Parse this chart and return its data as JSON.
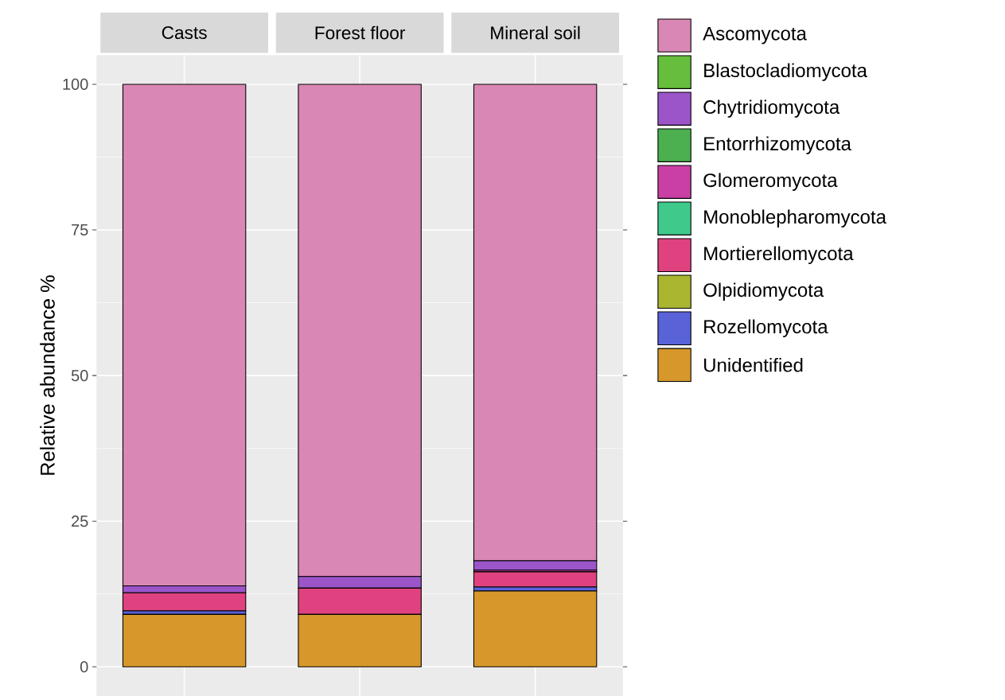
{
  "chart_data": {
    "type": "bar",
    "stacked": true,
    "ylabel": "Relative abundance %",
    "categories": [
      "Casts",
      "Forest floor",
      "Mineral soil"
    ],
    "ylim": [
      -5,
      105
    ],
    "yticks": [
      0,
      25,
      50,
      75,
      100
    ],
    "grid": true,
    "legend": "right",
    "series": [
      {
        "name": "Unidentified",
        "color": "#d6982a",
        "values": [
          9.0,
          9.0,
          13.0
        ]
      },
      {
        "name": "Rozellomycota",
        "color": "#5a62d8",
        "values": [
          0.6,
          null,
          0.7
        ]
      },
      {
        "name": "Olpidiomycota",
        "color": "#aab530",
        "values": [
          0,
          0,
          0
        ]
      },
      {
        "name": "Mortierellomycota",
        "color": "#e04280",
        "values": [
          3.1,
          4.5,
          2.6
        ]
      },
      {
        "name": "Monoblepharomycota",
        "color": "#3fc98a",
        "values": [
          0,
          0,
          0
        ]
      },
      {
        "name": "Glomeromycota",
        "color": "#c93fa5",
        "values": [
          0,
          0,
          0.3
        ]
      },
      {
        "name": "Entorrhizomycota",
        "color": "#4caf50",
        "values": [
          0,
          0,
          0
        ]
      },
      {
        "name": "Chytridiomycota",
        "color": "#9b55c9",
        "values": [
          1.2,
          2.0,
          1.6
        ]
      },
      {
        "name": "Blastocladiomycota",
        "color": "#66be3c",
        "values": [
          0,
          0,
          0
        ]
      },
      {
        "name": "Ascomycota",
        "color": "#d987b5",
        "values": [
          86.1,
          84.5,
          81.8
        ]
      }
    ]
  }
}
